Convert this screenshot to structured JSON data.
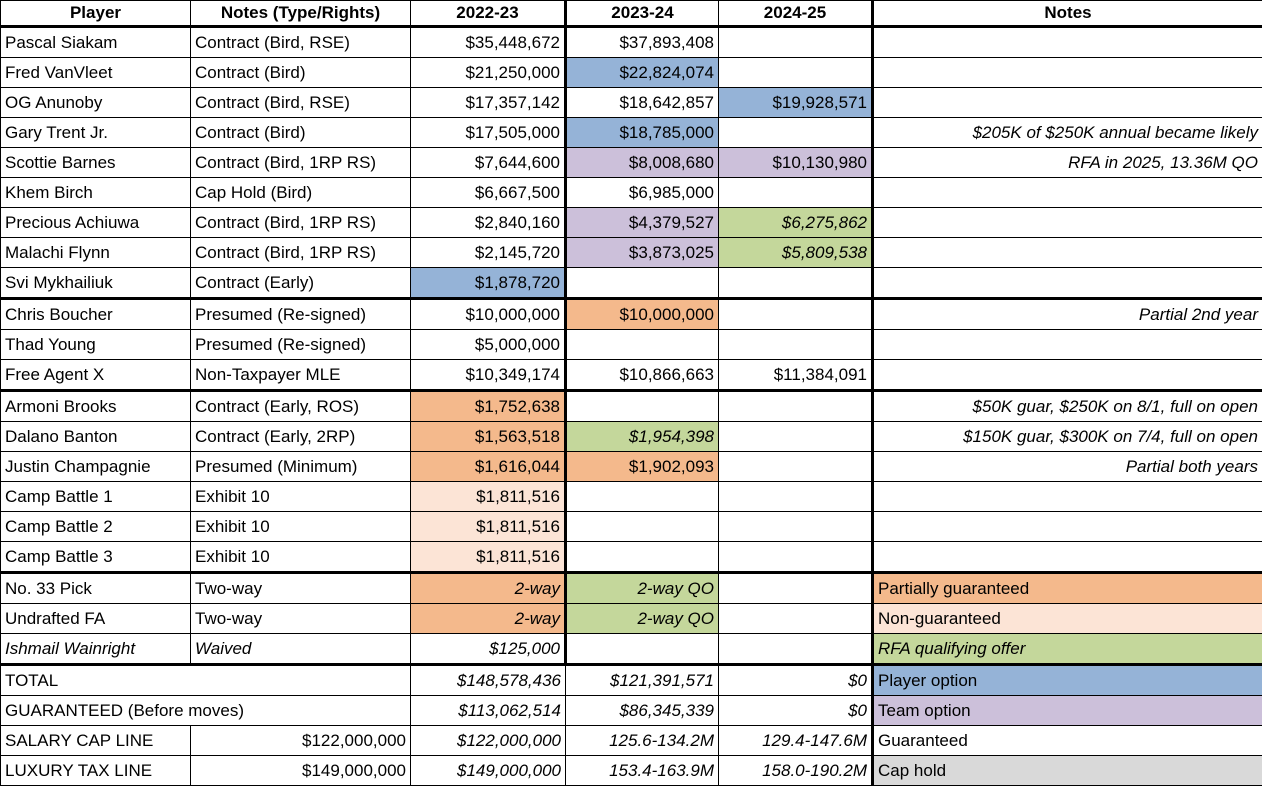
{
  "headers": [
    "Player",
    "Notes (Type/Rights)",
    "2022-23",
    "2023-24",
    "2024-25",
    "Notes"
  ],
  "colors": {
    "po": "#95b3d7",
    "to": "#ccc0da",
    "rfa": "#c4d79b",
    "pg": "#f4b98c",
    "ng": "#fce4d6",
    "ch": "#d9d9d9"
  },
  "rows": [
    {
      "cells": [
        {
          "t": "Pascal Siakam"
        },
        {
          "t": "Contract (Bird, RSE)"
        },
        {
          "t": "$35,448,672"
        },
        {
          "t": "$37,893,408"
        },
        {
          "t": ""
        },
        {
          "t": ""
        }
      ]
    },
    {
      "cells": [
        {
          "t": "Fred VanVleet"
        },
        {
          "t": "Contract (Bird)"
        },
        {
          "t": "$21,250,000"
        },
        {
          "t": "$22,824,074",
          "f": "po"
        },
        {
          "t": ""
        },
        {
          "t": ""
        }
      ]
    },
    {
      "cells": [
        {
          "t": "OG Anunoby"
        },
        {
          "t": "Contract (Bird, RSE)"
        },
        {
          "t": "$17,357,142"
        },
        {
          "t": "$18,642,857"
        },
        {
          "t": "$19,928,571",
          "f": "po"
        },
        {
          "t": ""
        }
      ]
    },
    {
      "cells": [
        {
          "t": "Gary Trent Jr."
        },
        {
          "t": "Contract (Bird)"
        },
        {
          "t": "$17,505,000"
        },
        {
          "t": "$18,785,000",
          "f": "po"
        },
        {
          "t": ""
        },
        {
          "t": "$205K of $250K annual  became likely",
          "i": true
        }
      ]
    },
    {
      "cells": [
        {
          "t": "Scottie Barnes"
        },
        {
          "t": "Contract (Bird, 1RP RS)"
        },
        {
          "t": "$7,644,600"
        },
        {
          "t": "$8,008,680",
          "f": "to"
        },
        {
          "t": "$10,130,980",
          "f": "to"
        },
        {
          "t": "RFA in 2025, 13.36M QO",
          "i": true
        }
      ]
    },
    {
      "cells": [
        {
          "t": "Khem Birch"
        },
        {
          "t": "Cap Hold (Bird)"
        },
        {
          "t": "$6,667,500"
        },
        {
          "t": "$6,985,000"
        },
        {
          "t": ""
        },
        {
          "t": ""
        }
      ]
    },
    {
      "cells": [
        {
          "t": "Precious Achiuwa"
        },
        {
          "t": "Contract (Bird, 1RP RS)"
        },
        {
          "t": "$2,840,160"
        },
        {
          "t": "$4,379,527",
          "f": "to"
        },
        {
          "t": "$6,275,862",
          "f": "rfa",
          "i": true
        },
        {
          "t": ""
        }
      ]
    },
    {
      "cells": [
        {
          "t": "Malachi Flynn"
        },
        {
          "t": "Contract (Bird, 1RP RS)"
        },
        {
          "t": "$2,145,720"
        },
        {
          "t": "$3,873,025",
          "f": "to"
        },
        {
          "t": "$5,809,538",
          "f": "rfa",
          "i": true
        },
        {
          "t": ""
        }
      ]
    },
    {
      "cells": [
        {
          "t": "Svi Mykhailiuk"
        },
        {
          "t": "Contract (Early)"
        },
        {
          "t": "$1,878,720",
          "f": "po"
        },
        {
          "t": ""
        },
        {
          "t": ""
        },
        {
          "t": ""
        }
      ]
    },
    {
      "cells": [
        {
          "t": "Chris Boucher"
        },
        {
          "t": "Presumed (Re-signed)"
        },
        {
          "t": "$10,000,000"
        },
        {
          "t": "$10,000,000",
          "f": "pg"
        },
        {
          "t": ""
        },
        {
          "t": "Partial 2nd year",
          "i": true
        }
      ]
    },
    {
      "cells": [
        {
          "t": "Thad Young"
        },
        {
          "t": "Presumed (Re-signed)"
        },
        {
          "t": "$5,000,000"
        },
        {
          "t": ""
        },
        {
          "t": ""
        },
        {
          "t": ""
        }
      ]
    },
    {
      "cells": [
        {
          "t": "Free Agent X"
        },
        {
          "t": "Non-Taxpayer MLE"
        },
        {
          "t": "$10,349,174"
        },
        {
          "t": "$10,866,663"
        },
        {
          "t": "$11,384,091"
        },
        {
          "t": ""
        }
      ]
    },
    {
      "cells": [
        {
          "t": "Armoni Brooks"
        },
        {
          "t": "Contract (Early, ROS)"
        },
        {
          "t": "$1,752,638",
          "f": "pg"
        },
        {
          "t": ""
        },
        {
          "t": ""
        },
        {
          "t": "$50K guar, $250K on 8/1, full on open",
          "i": true
        }
      ]
    },
    {
      "cells": [
        {
          "t": "Dalano Banton"
        },
        {
          "t": "Contract (Early, 2RP)"
        },
        {
          "t": "$1,563,518",
          "f": "pg"
        },
        {
          "t": "$1,954,398",
          "f": "rfa",
          "i": true
        },
        {
          "t": ""
        },
        {
          "t": "$150K guar, $300K on 7/4, full on open",
          "i": true
        }
      ]
    },
    {
      "cells": [
        {
          "t": "Justin Champagnie"
        },
        {
          "t": "Presumed (Minimum)"
        },
        {
          "t": "$1,616,044",
          "f": "pg"
        },
        {
          "t": "$1,902,093",
          "f": "pg"
        },
        {
          "t": ""
        },
        {
          "t": "Partial both years",
          "i": true
        }
      ]
    },
    {
      "cells": [
        {
          "t": "Camp Battle 1"
        },
        {
          "t": "Exhibit 10"
        },
        {
          "t": "$1,811,516",
          "f": "ng"
        },
        {
          "t": ""
        },
        {
          "t": ""
        },
        {
          "t": ""
        }
      ]
    },
    {
      "cells": [
        {
          "t": "Camp Battle 2"
        },
        {
          "t": "Exhibit 10"
        },
        {
          "t": "$1,811,516",
          "f": "ng"
        },
        {
          "t": ""
        },
        {
          "t": ""
        },
        {
          "t": ""
        }
      ]
    },
    {
      "cells": [
        {
          "t": "Camp Battle 3"
        },
        {
          "t": "Exhibit 10"
        },
        {
          "t": "$1,811,516",
          "f": "ng"
        },
        {
          "t": ""
        },
        {
          "t": ""
        },
        {
          "t": ""
        }
      ]
    },
    {
      "cells": [
        {
          "t": "No. 33 Pick"
        },
        {
          "t": "Two-way"
        },
        {
          "t": "2-way",
          "f": "pg",
          "i": true
        },
        {
          "t": "2-way QO",
          "f": "rfa",
          "i": true
        },
        {
          "t": ""
        },
        {
          "t": "Partially guaranteed",
          "f": "pg",
          "l": true
        }
      ]
    },
    {
      "cells": [
        {
          "t": "Undrafted FA"
        },
        {
          "t": "Two-way"
        },
        {
          "t": "2-way",
          "f": "pg",
          "i": true
        },
        {
          "t": "2-way QO",
          "f": "rfa",
          "i": true
        },
        {
          "t": ""
        },
        {
          "t": "Non-guaranteed",
          "f": "ng",
          "l": true
        }
      ]
    },
    {
      "cells": [
        {
          "t": "Ishmail Wainright",
          "i": true
        },
        {
          "t": "Waived",
          "i": true
        },
        {
          "t": "$125,000",
          "i": true
        },
        {
          "t": ""
        },
        {
          "t": ""
        },
        {
          "t": "RFA qualifying offer",
          "f": "rfa",
          "i": true,
          "l": true
        }
      ]
    },
    {
      "cells": [
        {
          "t": "TOTAL",
          "span": 2
        },
        {
          "t": "$148,578,436",
          "i": true
        },
        {
          "t": "$121,391,571",
          "i": true
        },
        {
          "t": "$0",
          "i": true
        },
        {
          "t": "Player option",
          "f": "po",
          "l": true
        }
      ]
    },
    {
      "cells": [
        {
          "t": "GUARANTEED (Before moves)",
          "span": 2
        },
        {
          "t": "$113,062,514",
          "i": true
        },
        {
          "t": "$86,345,339",
          "i": true
        },
        {
          "t": "$0",
          "i": true
        },
        {
          "t": "Team option",
          "f": "to",
          "l": true
        }
      ]
    },
    {
      "cells": [
        {
          "t": "SALARY CAP LINE"
        },
        {
          "t": "$122,000,000",
          "r": true
        },
        {
          "t": "$122,000,000",
          "i": true
        },
        {
          "t": "125.6-134.2M",
          "i": true
        },
        {
          "t": "129.4-147.6M",
          "i": true
        },
        {
          "t": "Guaranteed",
          "l": true
        }
      ]
    },
    {
      "cells": [
        {
          "t": "LUXURY TAX LINE"
        },
        {
          "t": "$149,000,000",
          "r": true
        },
        {
          "t": "$149,000,000",
          "i": true
        },
        {
          "t": "153.4-163.9M",
          "i": true
        },
        {
          "t": "158.0-190.2M",
          "i": true
        },
        {
          "t": "Cap hold",
          "f": "ch",
          "l": true
        }
      ]
    }
  ]
}
